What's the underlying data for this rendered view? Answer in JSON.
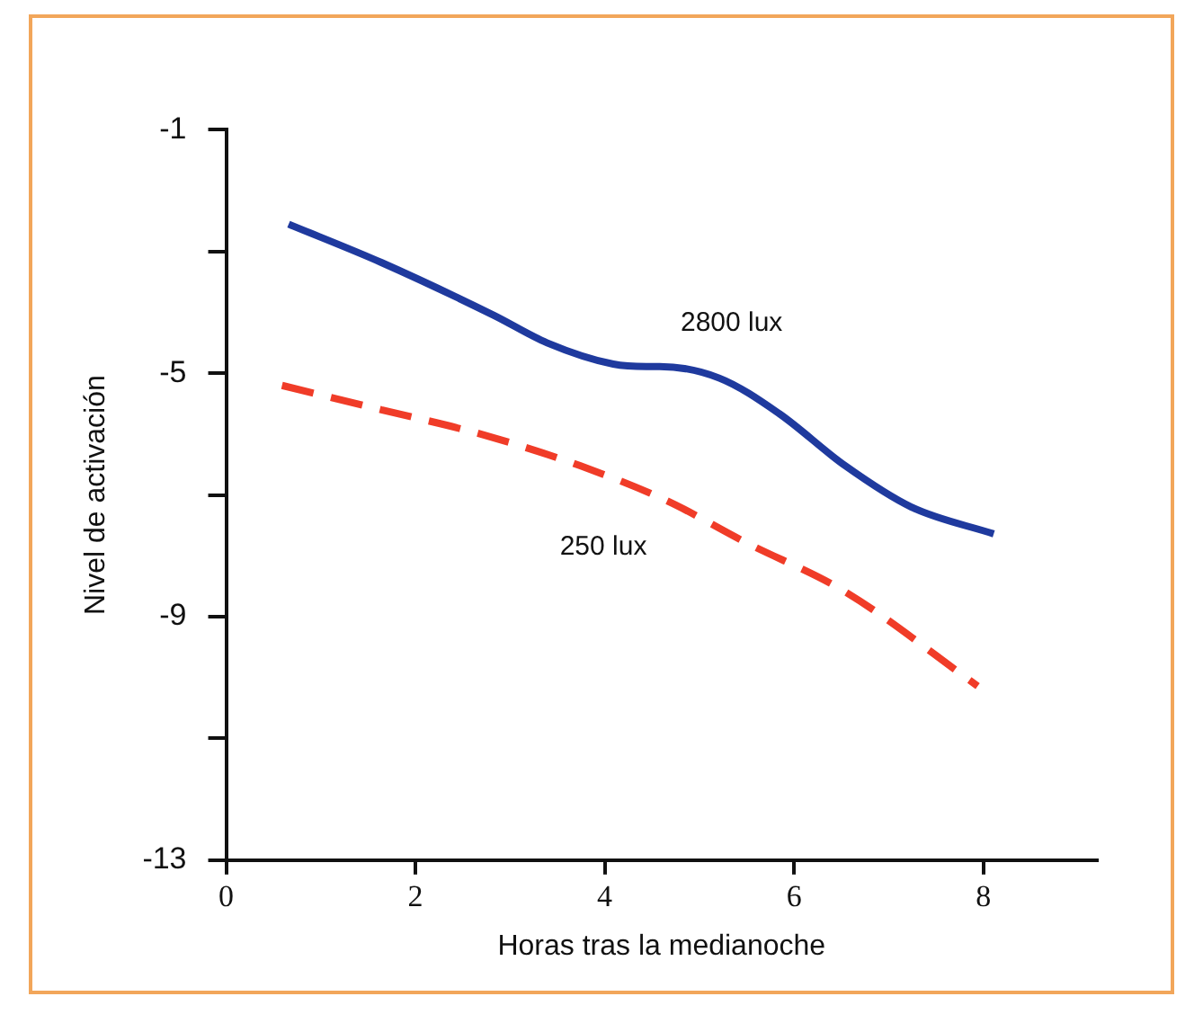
{
  "chart_data": {
    "type": "line",
    "xlabel": "Horas tras la medianoche",
    "ylabel": "Nivel de activación",
    "xlim": [
      0,
      9.2
    ],
    "xticks": [
      0,
      2,
      4,
      6,
      8
    ],
    "ylim": [
      -13,
      -1
    ],
    "yticks": [
      -1,
      {
        "value": -3,
        "label": null
      },
      -5,
      {
        "value": -7,
        "label": null
      },
      -9,
      {
        "value": -11,
        "label": null
      },
      -13
    ],
    "grid": false,
    "legend": false,
    "marker": "none",
    "series": [
      {
        "name": "2800 lux",
        "color": "#1f3a9e",
        "line_style": "solid",
        "x": [
          0.66,
          1.64,
          2.83,
          3.39,
          4.09,
          4.44,
          4.58,
          5.21,
          5.84,
          6.54,
          7.24,
          8.11
        ],
        "values": [
          -2.55,
          -3.18,
          -4.05,
          -4.5,
          -4.85,
          -4.89,
          -4.89,
          -5.08,
          -5.66,
          -6.52,
          -7.2,
          -7.64
        ]
      },
      {
        "name": "250 lux",
        "color": "#f03c28",
        "line_style": "dashed",
        "x": [
          0.59,
          1.64,
          2.69,
          3.74,
          4.65,
          5.49,
          6.54,
          7.94
        ],
        "values": [
          -5.2,
          -5.6,
          -6.0,
          -6.52,
          -7.09,
          -7.78,
          -8.59,
          -10.14
        ]
      }
    ]
  }
}
